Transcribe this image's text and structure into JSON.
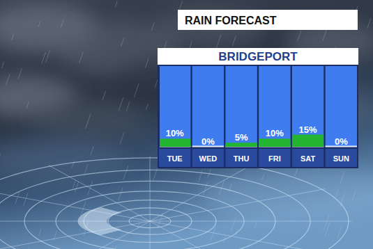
{
  "chart_data": {
    "type": "bar",
    "title": "RAIN FORECAST",
    "subtitle": "BRIDGEPORT",
    "categories": [
      "TUE",
      "WED",
      "THU",
      "FRI",
      "SAT",
      "SUN"
    ],
    "values": [
      10,
      0,
      5,
      10,
      15,
      0
    ],
    "value_labels": [
      "10%",
      "0%",
      "5%",
      "10%",
      "15%",
      "0%"
    ],
    "color": "#23b52f",
    "ylim": [
      0,
      100
    ],
    "data_labels": true,
    "tick_labels": "x"
  }
}
